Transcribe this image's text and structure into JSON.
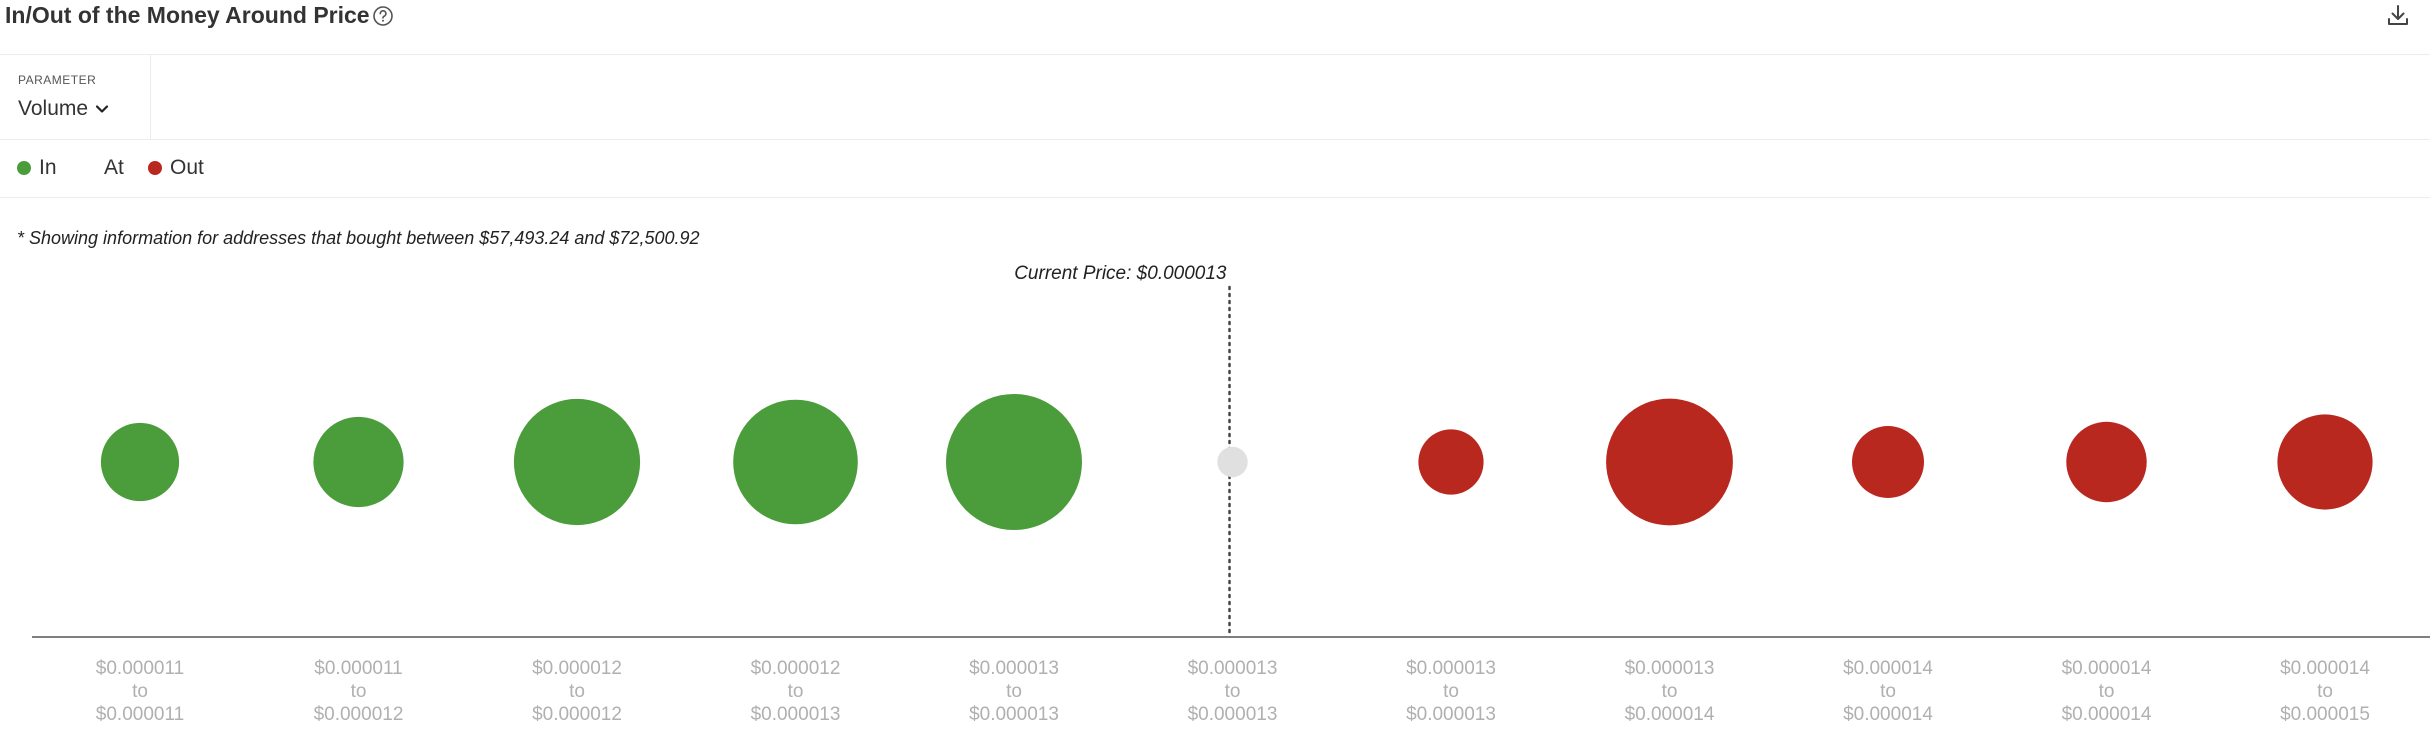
{
  "header": {
    "title": "In/Out of the Money Around Price",
    "help_icon": "help-circle-icon",
    "download_icon": "download-icon"
  },
  "parameter": {
    "label": "PARAMETER",
    "selected": "Volume"
  },
  "legend": [
    {
      "label": "In",
      "color": "#4a9d3a"
    },
    {
      "label": "At",
      "color": ""
    },
    {
      "label": "Out",
      "color": "#b8281e"
    }
  ],
  "note": "* Showing information for addresses that bought between $57,493.24 and $72,500.92",
  "colors": {
    "in": "#4a9d3a",
    "at": "#e0e0e0",
    "out": "#b8281e",
    "tick": "#b0b0b0"
  },
  "chart_data": {
    "type": "scatter",
    "title": "",
    "xlabel": "",
    "ylabel": "",
    "grid": false,
    "current_price_label": "Current Price: $0.000013",
    "current_price_bucket_index": 5,
    "bucket_joiner": "to",
    "categories": [
      {
        "from": "$0.000011",
        "to": "$0.000011",
        "status": "In",
        "relative_volume": 0.33
      },
      {
        "from": "$0.000011",
        "to": "$0.000012",
        "status": "In",
        "relative_volume": 0.44
      },
      {
        "from": "$0.000012",
        "to": "$0.000012",
        "status": "In",
        "relative_volume": 0.86
      },
      {
        "from": "$0.000012",
        "to": "$0.000013",
        "status": "In",
        "relative_volume": 0.84
      },
      {
        "from": "$0.000013",
        "to": "$0.000013",
        "status": "In",
        "relative_volume": 1.0
      },
      {
        "from": "$0.000013",
        "to": "$0.000013",
        "status": "At",
        "relative_volume": 0.05
      },
      {
        "from": "$0.000013",
        "to": "$0.000013",
        "status": "Out",
        "relative_volume": 0.23
      },
      {
        "from": "$0.000013",
        "to": "$0.000014",
        "status": "Out",
        "relative_volume": 0.87
      },
      {
        "from": "$0.000014",
        "to": "$0.000014",
        "status": "Out",
        "relative_volume": 0.28
      },
      {
        "from": "$0.000014",
        "to": "$0.000014",
        "status": "Out",
        "relative_volume": 0.35
      },
      {
        "from": "$0.000014",
        "to": "$0.000015",
        "status": "Out",
        "relative_volume": 0.49
      }
    ]
  }
}
